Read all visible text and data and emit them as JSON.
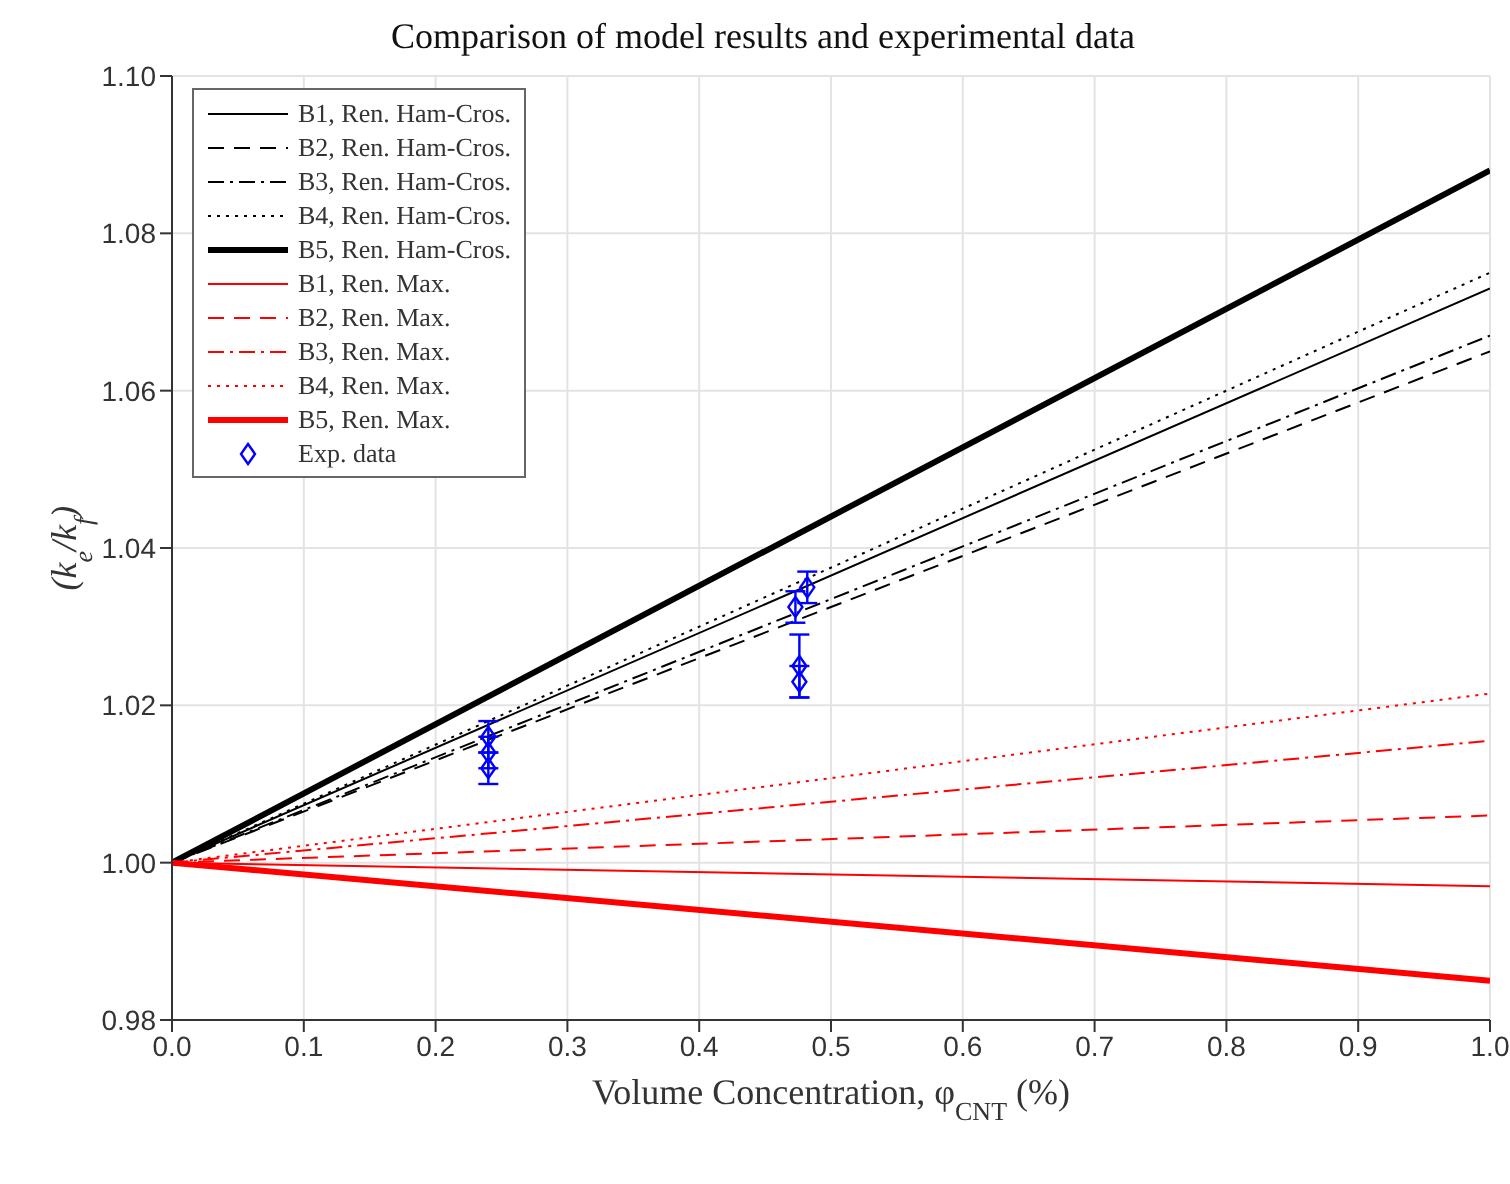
{
  "chart_data": {
    "type": "line",
    "title": "Comparison of model results and experimental data",
    "xlabel": "Volume Concentration, φ$_{CNT}$ (%)",
    "ylabel": "(k$_{e}$/k$_{f}$)",
    "xlim": [
      0,
      1
    ],
    "xticks": [
      {
        "value": 0,
        "label": "0.0"
      },
      0.1,
      0.2,
      0.3,
      0.4,
      0.5,
      0.6,
      0.7,
      0.8,
      0.9,
      {
        "value": 1,
        "label": "1.0"
      }
    ],
    "ylim": [
      0.98,
      1.1
    ],
    "yticks": [
      {
        "value": 0.98,
        "label": "0.98"
      },
      {
        "value": 1,
        "label": "1.00"
      },
      {
        "value": 1.02,
        "label": "1.02"
      },
      {
        "value": 1.04,
        "label": "1.04"
      },
      {
        "value": 1.06,
        "label": "1.06"
      },
      {
        "value": 1.08,
        "label": "1.08"
      },
      {
        "value": 1.1,
        "label": "1.10"
      }
    ],
    "grid": true,
    "legend": "top left",
    "marker": "none",
    "series": [
      {
        "name": "B1, Ren. Ham-Cros.",
        "color": "#000000",
        "line_style": "solid",
        "x": [
          0,
          1
        ],
        "values": [
          1,
          1.073
        ]
      },
      {
        "name": "B2, Ren. Ham-Cros.",
        "color": "#000000",
        "line_style": "dashed",
        "x": [
          0,
          1
        ],
        "values": [
          1,
          1.065
        ]
      },
      {
        "name": "B3, Ren. Ham-Cros.",
        "color": "#000000",
        "line_style": "dashdot",
        "x": [
          0,
          1
        ],
        "values": [
          1,
          1.067
        ]
      },
      {
        "name": "B4, Ren. Ham-Cros.",
        "color": "#000000",
        "line_style": "dotted",
        "x": [
          0,
          1
        ],
        "values": [
          1,
          1.075
        ]
      },
      {
        "name": "B5, Ren. Ham-Cros.",
        "color": "#000000",
        "line_style": "solid",
        "x": [
          0,
          1
        ],
        "values": [
          1,
          1.088
        ]
      },
      {
        "name": "B1, Ren. Max.",
        "color": "#ff0000",
        "line_style": "solid",
        "x": [
          0,
          1
        ],
        "values": [
          1,
          0.997
        ]
      },
      {
        "name": "B2, Ren. Max.",
        "color": "#ff0000",
        "line_style": "dashed",
        "x": [
          0,
          1
        ],
        "values": [
          1,
          1.006
        ]
      },
      {
        "name": "B3, Ren. Max.",
        "color": "#ff0000",
        "line_style": "dashdot",
        "x": [
          0,
          1
        ],
        "values": [
          1,
          1.0155
        ]
      },
      {
        "name": "B4, Ren. Max.",
        "color": "#ff0000",
        "line_style": "dotted",
        "x": [
          0,
          1
        ],
        "values": [
          1,
          1.0215
        ]
      },
      {
        "name": "B5, Ren. Max.",
        "color": "#ff0000",
        "line_style": "solid",
        "x": [
          0,
          1
        ],
        "values": [
          1,
          0.985
        ]
      },
      {
        "name": "Exp. data",
        "type": "scatter",
        "marker": "diamond",
        "color": "#0000ff",
        "x": [
          0.24,
          0.24,
          0.24,
          0.473,
          0.482,
          0.476,
          0.476
        ],
        "values": [
          1.016,
          1.014,
          1.012,
          1.0325,
          1.035,
          1.025,
          1.023
        ],
        "errors": [
          0.002,
          0.002,
          0.002,
          0.002,
          0.002,
          0.004,
          0.002
        ]
      }
    ]
  }
}
